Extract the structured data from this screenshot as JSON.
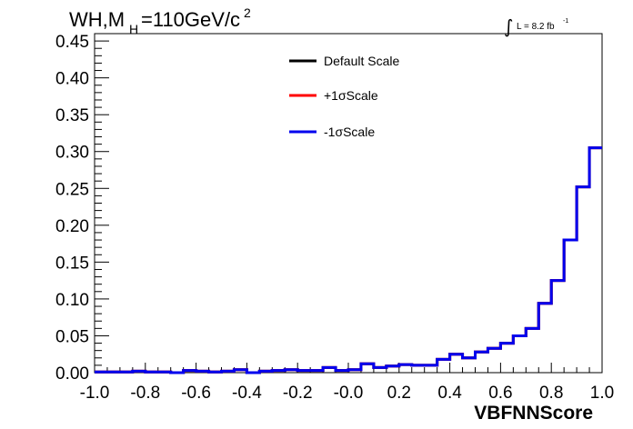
{
  "chart_data": {
    "type": "step",
    "title": {
      "prefix": "WH,M",
      "subscript": "H",
      "main": "=110GeV/c",
      "superscript": "2"
    },
    "luminosity": {
      "integral": "∫",
      "text": "L = 8.2 fb",
      "superscript": "-1"
    },
    "xlabel": "VBFNNScore",
    "ylabel": "",
    "xlim": [
      -1.0,
      1.0
    ],
    "ylim": [
      0.0,
      0.46
    ],
    "x_ticks": [
      "-1.0",
      "-0.8",
      "-0.6",
      "-0.4",
      "-0.2",
      "-0.0",
      "0.2",
      "0.4",
      "0.6",
      "0.8",
      "1.0"
    ],
    "y_ticks": [
      "0.00",
      "0.05",
      "0.10",
      "0.15",
      "0.20",
      "0.25",
      "0.30",
      "0.35",
      "0.40",
      "0.45"
    ],
    "bin_edges": [
      -1.0,
      -0.95,
      -0.9,
      -0.85,
      -0.8,
      -0.75,
      -0.7,
      -0.65,
      -0.6,
      -0.55,
      -0.5,
      -0.45,
      -0.4,
      -0.35,
      -0.3,
      -0.25,
      -0.2,
      -0.15,
      -0.1,
      -0.05,
      0.0,
      0.05,
      0.1,
      0.15,
      0.2,
      0.25,
      0.3,
      0.35,
      0.4,
      0.45,
      0.5,
      0.55,
      0.6,
      0.65,
      0.7,
      0.75,
      0.8,
      0.85,
      0.9,
      0.95,
      1.0
    ],
    "series": [
      {
        "name": "Default Scale",
        "color": "#000000",
        "values": [
          0.001,
          0.001,
          0.001,
          0.002,
          0.001,
          0.001,
          0.0,
          0.003,
          0.002,
          0.001,
          0.002,
          0.004,
          0.0,
          0.002,
          0.003,
          0.004,
          0.003,
          0.003,
          0.007,
          0.003,
          0.004,
          0.012,
          0.007,
          0.009,
          0.011,
          0.01,
          0.01,
          0.018,
          0.025,
          0.02,
          0.028,
          0.033,
          0.04,
          0.05,
          0.06,
          0.094,
          0.125,
          0.18,
          0.252,
          0.305
        ]
      },
      {
        "name": "+1σScale",
        "color": "#ff0000",
        "values": [
          0.001,
          0.001,
          0.001,
          0.002,
          0.001,
          0.001,
          0.0,
          0.003,
          0.002,
          0.001,
          0.002,
          0.004,
          0.0,
          0.002,
          0.003,
          0.004,
          0.003,
          0.003,
          0.007,
          0.003,
          0.004,
          0.012,
          0.007,
          0.009,
          0.011,
          0.01,
          0.01,
          0.018,
          0.025,
          0.02,
          0.028,
          0.033,
          0.04,
          0.05,
          0.06,
          0.094,
          0.125,
          0.18,
          0.252,
          0.305
        ]
      },
      {
        "name": "-1σScale",
        "color": "#0000ee",
        "values": [
          0.001,
          0.001,
          0.001,
          0.002,
          0.001,
          0.001,
          0.0,
          0.003,
          0.002,
          0.001,
          0.002,
          0.004,
          0.0,
          0.002,
          0.003,
          0.004,
          0.003,
          0.003,
          0.007,
          0.003,
          0.004,
          0.012,
          0.007,
          0.009,
          0.011,
          0.01,
          0.01,
          0.018,
          0.025,
          0.02,
          0.028,
          0.033,
          0.04,
          0.05,
          0.06,
          0.094,
          0.125,
          0.18,
          0.252,
          0.305
        ]
      }
    ],
    "legend": {
      "position": "top-center"
    },
    "grid": false
  }
}
